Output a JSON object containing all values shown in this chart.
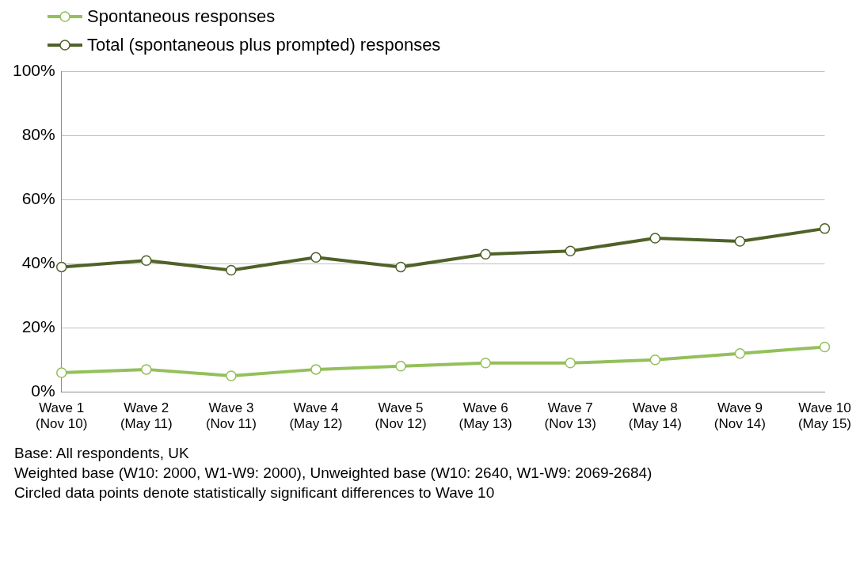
{
  "chart_data": {
    "type": "line",
    "categories": [
      "Wave 1\n(Nov 10)",
      "Wave 2\n(May 11)",
      "Wave 3\n(Nov 11)",
      "Wave 4\n(May 12)",
      "Wave 5\n(Nov 12)",
      "Wave 6\n(May 13)",
      "Wave 7\n(Nov 13)",
      "Wave 8\n(May 14)",
      "Wave 9\n(Nov 14)",
      "Wave 10\n(May 15)"
    ],
    "series": [
      {
        "name": "Spontaneous responses",
        "color": "#93c05a",
        "values": [
          6,
          7,
          5,
          7,
          8,
          9,
          9,
          10,
          12,
          14
        ]
      },
      {
        "name": "Total (spontaneous plus prompted) responses",
        "color": "#4f6228",
        "values": [
          39,
          41,
          38,
          42,
          39,
          43,
          44,
          48,
          47,
          51
        ]
      }
    ],
    "ylim": [
      0,
      100
    ],
    "yticks": [
      {
        "value": 0,
        "label": "0%"
      },
      {
        "value": 20,
        "label": "20%"
      },
      {
        "value": 40,
        "label": "40%"
      },
      {
        "value": 60,
        "label": "60%"
      },
      {
        "value": 80,
        "label": "80%"
      },
      {
        "value": 100,
        "label": "100%"
      }
    ],
    "grid": "y",
    "legend": "top left",
    "marker": "circle",
    "line_style": "solid",
    "annotations": [
      "Base: All respondents, UK",
      "Weighted base (W10: 2000, W1-W9: 2000), Unweighted base (W10: 2640, W1-W9: 2069-2684)",
      "Circled data points  denote statistically significant differences to Wave  10"
    ]
  }
}
